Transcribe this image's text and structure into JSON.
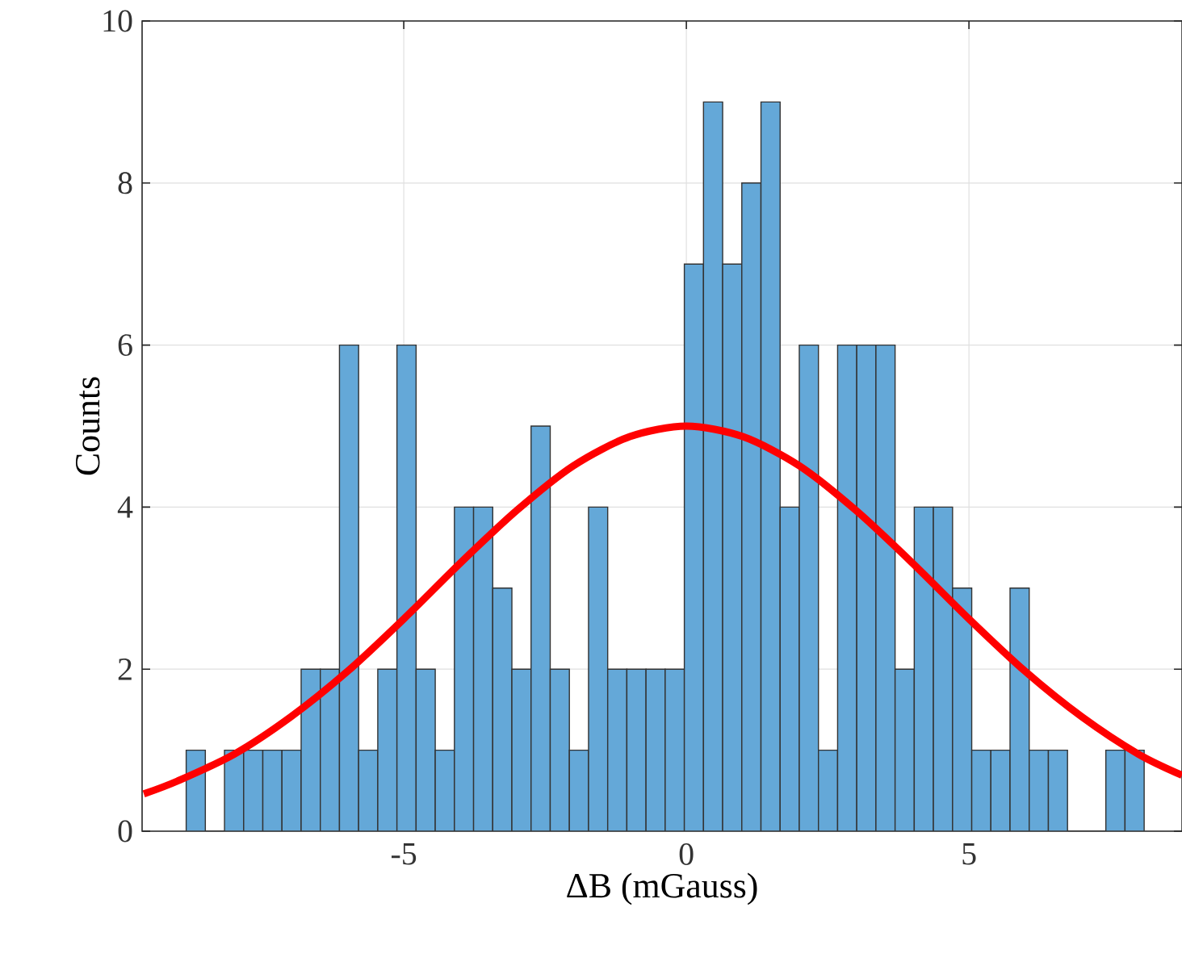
{
  "chart_data": {
    "type": "histogram",
    "xlabel": "ΔB (mGauss)",
    "ylabel": "Counts",
    "xlim": [
      -9.63,
      8.77
    ],
    "ylim": [
      0,
      10
    ],
    "xticks": [
      -5,
      0,
      5
    ],
    "yticks": [
      0,
      2,
      4,
      6,
      8,
      10
    ],
    "grid": true,
    "series": [
      {
        "color": "#64a8d8",
        "bins": [
          -8.85,
          -8.511,
          -8.172,
          -7.833,
          -7.494,
          -7.155,
          -6.816,
          -6.477,
          -6.138,
          -5.799,
          -5.46,
          -5.121,
          -4.782,
          -4.443,
          -4.104,
          -3.765,
          -3.426,
          -3.087,
          -2.748,
          -2.409,
          -2.07,
          -1.731,
          -1.392,
          -1.053,
          -0.714,
          -0.375,
          -0.036,
          0.303,
          0.642,
          0.981,
          1.32,
          1.659,
          1.998,
          2.337,
          2.676,
          3.015,
          3.354,
          3.693,
          4.032,
          4.371,
          4.71,
          5.049,
          5.388,
          5.727,
          6.066,
          6.405,
          6.744,
          7.083,
          7.422,
          7.761,
          8.1
        ],
        "values": [
          1,
          0,
          1,
          1,
          1,
          1,
          2,
          2,
          6,
          1,
          2,
          6,
          2,
          1,
          4,
          4,
          3,
          2,
          5,
          2,
          1,
          4,
          2,
          2,
          2,
          2,
          7,
          9,
          7,
          8,
          9,
          4,
          6,
          1,
          6,
          6,
          6,
          2,
          4,
          4,
          3,
          1,
          1,
          3,
          1,
          1,
          0,
          0,
          1,
          1
        ]
      },
      {
        "type": "line",
        "color": "#ff0000",
        "x": [
          -9.6,
          -9,
          -8,
          -7,
          -6,
          -5,
          -4,
          -3,
          -2,
          -1,
          0,
          1,
          2,
          3,
          4,
          5,
          6,
          7,
          8,
          8.77
        ],
        "values": [
          0.46,
          0.62,
          0.95,
          1.41,
          1.97,
          2.62,
          3.31,
          3.96,
          4.51,
          4.87,
          5,
          4.87,
          4.51,
          3.96,
          3.31,
          2.62,
          1.97,
          1.41,
          0.95,
          0.69
        ]
      }
    ]
  }
}
